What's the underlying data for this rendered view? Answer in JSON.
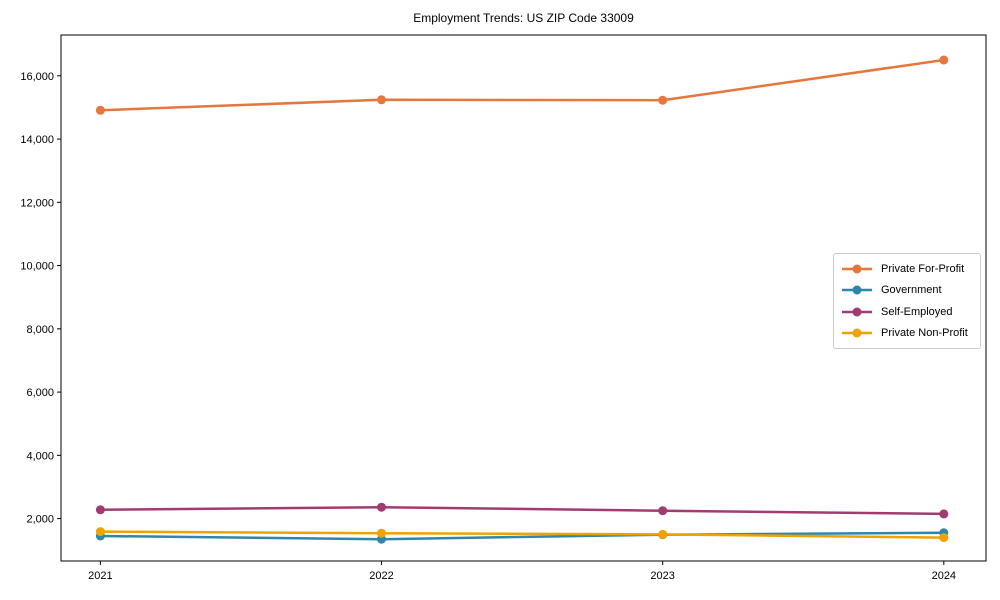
{
  "chart_data": {
    "type": "line",
    "title": "Employment Trends: US ZIP Code 33009",
    "x": [
      "2021",
      "2022",
      "2023",
      "2024"
    ],
    "series": [
      {
        "name": "Private For-Profit",
        "color": "#E5763C",
        "values": [
          14910,
          15240,
          15230,
          16500
        ]
      },
      {
        "name": "Government",
        "color": "#2E86AB",
        "values": [
          1450,
          1350,
          1490,
          1550
        ]
      },
      {
        "name": "Self-Employed",
        "color": "#A23B72",
        "values": [
          2280,
          2360,
          2250,
          2150
        ]
      },
      {
        "name": "Private Non-Profit",
        "color": "#F0A202",
        "values": [
          1590,
          1540,
          1500,
          1400
        ]
      }
    ],
    "yticks": [
      {
        "value": 2000,
        "label": "2,000"
      },
      {
        "value": 4000,
        "label": "4,000"
      },
      {
        "value": 6000,
        "label": "6,000"
      },
      {
        "value": 8000,
        "label": "8,000"
      },
      {
        "value": 10000,
        "label": "10,000"
      },
      {
        "value": 12000,
        "label": "12,000"
      },
      {
        "value": 14000,
        "label": "14,000"
      },
      {
        "value": 16000,
        "label": "16,000"
      }
    ],
    "ylim": [
      660,
      17290
    ],
    "xlim": [
      -0.14,
      3.15
    ],
    "xlabel": "",
    "ylabel": "",
    "grid": false,
    "legend_position": "center-right",
    "axis_color": "#000000",
    "background_color": "#ffffff",
    "line_width": 2.5,
    "marker": "circle",
    "marker_radius": 4.5
  }
}
